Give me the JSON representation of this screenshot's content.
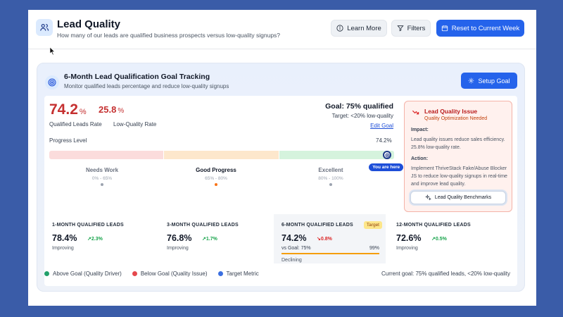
{
  "header": {
    "title": "Lead Quality",
    "subtitle": "How many of our leads are qualified business prospects versus low-quality signups?",
    "learn_more": "Learn More",
    "filters": "Filters",
    "reset": "Reset to Current Week"
  },
  "card": {
    "title": "6-Month Lead Qualification Goal Tracking",
    "subtitle": "Monitor qualified leads percentage and reduce low-quality signups",
    "setup_button": "Setup Goal"
  },
  "summary": {
    "qualified_value": "74.2",
    "qualified_unit": "%",
    "qualified_label": "Qualified Leads Rate",
    "low_value": "25.8",
    "low_unit": "%",
    "low_label": "Low-Quality Rate",
    "goal_title": "Goal: 75% qualified",
    "goal_target": "Target: <20% low-quality",
    "edit_goal": "Edit Goal"
  },
  "progress": {
    "label": "Progress Level",
    "value_text": "74.2%",
    "level": 74.2,
    "here_label": "You are here",
    "zones": [
      {
        "name": "Needs Work",
        "range": "0% - 65%",
        "color": "#fbdcdc",
        "dot": "#9ca3af"
      },
      {
        "name": "Good Progress",
        "range": "65% - 80%",
        "color": "#fde7cc",
        "dot": "#f97316"
      },
      {
        "name": "Excellent",
        "range": "80% - 100%",
        "color": "#d5f3dd",
        "dot": "#9ca3af"
      }
    ]
  },
  "alert": {
    "title": "Lead Quality Issue",
    "subtitle": "Quality Optimization Needed",
    "impact_label": "Impact:",
    "impact_text": "Lead quality issues reduce sales efficiency. 25.8% low-quality rate.",
    "action_label": "Action:",
    "action_text": "Implement ThriveStack Fake/Abuse Blocker JS to reduce low-quality signups in real-time and improve lead quality.",
    "benchmark_button": "Lead Quality Benchmarks"
  },
  "metrics": [
    {
      "label": "1-MONTH QUALIFIED LEADS",
      "value": "78.4%",
      "change": "2.3%",
      "direction": "up",
      "status": "Improving"
    },
    {
      "label": "3-MONTH QUALIFIED LEADS",
      "value": "76.8%",
      "change": "1.7%",
      "direction": "up",
      "status": "Improving"
    },
    {
      "label": "6-MONTH QUALIFIED LEADS",
      "value": "74.2%",
      "change": "0.8%",
      "direction": "down",
      "status": "Declining",
      "tag": "Target",
      "vs_label": "vs Goal: 75%",
      "vs_value": "99%",
      "vs_progress": 0.99
    },
    {
      "label": "12-MONTH QUALIFIED LEADS",
      "value": "72.6%",
      "change": "0.5%",
      "direction": "up",
      "status": "Improving"
    }
  ],
  "legend": [
    {
      "label": "Above Goal (Quality Driver)",
      "color": "#22a06b"
    },
    {
      "label": "Below Goal (Quality Issue)",
      "color": "#e5484d"
    },
    {
      "label": "Target Metric",
      "color": "#3b6fe0"
    }
  ],
  "footer_note": "Current goal: 75% qualified leads, <20% low-quality",
  "colors": {
    "accent": "#2563eb",
    "danger": "#c53030",
    "up": "#16a34a",
    "down": "#dc2626"
  }
}
